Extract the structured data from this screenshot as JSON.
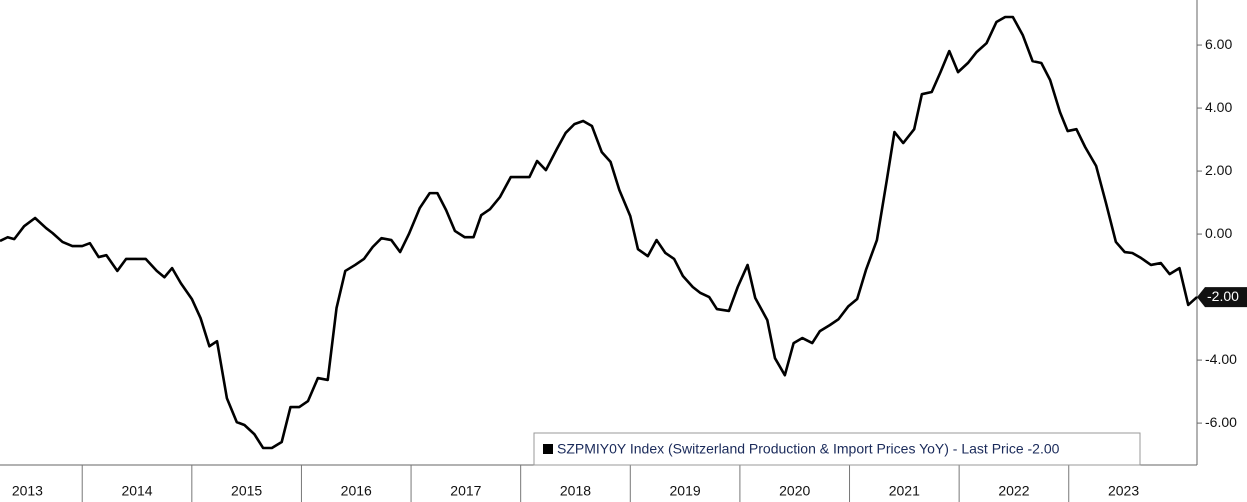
{
  "chart_data": {
    "type": "line",
    "x": [
      2013.25,
      2013.32,
      2013.38,
      2013.47,
      2013.57,
      2013.67,
      2013.73,
      2013.82,
      2013.91,
      2014.0,
      2014.07,
      2014.15,
      2014.22,
      2014.32,
      2014.4,
      2014.49,
      2014.58,
      2014.68,
      2014.75,
      2014.82,
      2014.9,
      2015.0,
      2015.08,
      2015.16,
      2015.23,
      2015.32,
      2015.41,
      2015.48,
      2015.57,
      2015.65,
      2015.73,
      2015.82,
      2015.9,
      2015.98,
      2016.06,
      2016.15,
      2016.24,
      2016.32,
      2016.4,
      2016.49,
      2016.57,
      2016.65,
      2016.73,
      2016.82,
      2016.9,
      2016.98,
      2017.08,
      2017.17,
      2017.24,
      2017.32,
      2017.4,
      2017.49,
      2017.57,
      2017.64,
      2017.72,
      2017.81,
      2017.91,
      2017.99,
      2018.08,
      2018.15,
      2018.23,
      2018.33,
      2018.41,
      2018.49,
      2018.57,
      2018.65,
      2018.74,
      2018.82,
      2018.9,
      2019.0,
      2019.07,
      2019.16,
      2019.24,
      2019.32,
      2019.4,
      2019.48,
      2019.57,
      2019.64,
      2019.72,
      2019.79,
      2019.9,
      2019.98,
      2020.07,
      2020.14,
      2020.25,
      2020.32,
      2020.41,
      2020.49,
      2020.57,
      2020.66,
      2020.73,
      2020.82,
      2020.9,
      2020.99,
      2021.07,
      2021.15,
      2021.25,
      2021.34,
      2021.41,
      2021.49,
      2021.59,
      2021.66,
      2021.75,
      2021.83,
      2021.91,
      2021.99,
      2022.08,
      2022.16,
      2022.25,
      2022.34,
      2022.42,
      2022.49,
      2022.58,
      2022.67,
      2022.75,
      2022.83,
      2022.92,
      2022.99,
      2023.07,
      2023.15,
      2023.25,
      2023.34,
      2023.43,
      2023.51,
      2023.58,
      2023.66,
      2023.75,
      2023.84,
      2023.92,
      2024.01,
      2024.09,
      2024.17
    ],
    "series": [
      {
        "name": "SZPMIY0Y Index (Switzerland Production & Import Prices YoY) - Last Price -2.00",
        "color": "#000000",
        "values": [
          -0.22,
          -0.1,
          -0.16,
          0.25,
          0.51,
          0.19,
          0.03,
          -0.25,
          -0.38,
          -0.38,
          -0.29,
          -0.73,
          -0.67,
          -1.17,
          -0.79,
          -0.79,
          -0.79,
          -1.17,
          -1.37,
          -1.08,
          -1.56,
          -2.06,
          -2.67,
          -3.56,
          -3.4,
          -5.21,
          -5.97,
          -6.06,
          -6.35,
          -6.79,
          -6.79,
          -6.6,
          -5.49,
          -5.49,
          -5.3,
          -4.57,
          -4.63,
          -2.35,
          -1.17,
          -0.98,
          -0.79,
          -0.41,
          -0.13,
          -0.19,
          -0.57,
          0.0,
          0.83,
          1.3,
          1.3,
          0.76,
          0.1,
          -0.1,
          -0.1,
          0.6,
          0.79,
          1.17,
          1.81,
          1.81,
          1.81,
          2.32,
          2.03,
          2.7,
          3.21,
          3.49,
          3.59,
          3.43,
          2.6,
          2.29,
          1.4,
          0.57,
          -0.48,
          -0.7,
          -0.19,
          -0.6,
          -0.79,
          -1.33,
          -1.68,
          -1.87,
          -2.0,
          -2.38,
          -2.44,
          -1.68,
          -0.98,
          -2.03,
          -2.73,
          -3.94,
          -4.48,
          -3.46,
          -3.3,
          -3.46,
          -3.08,
          -2.89,
          -2.7,
          -2.29,
          -2.06,
          -1.14,
          -0.19,
          1.71,
          3.24,
          2.89,
          3.33,
          4.44,
          4.51,
          5.14,
          5.81,
          5.14,
          5.43,
          5.78,
          6.06,
          6.73,
          6.89,
          6.89,
          6.32,
          5.49,
          5.43,
          4.89,
          3.87,
          3.27,
          3.33,
          2.76,
          2.16,
          0.98,
          -0.25,
          -0.57,
          -0.6,
          -0.76,
          -0.98,
          -0.92,
          -1.27,
          -1.08,
          -2.25,
          -2.0
        ]
      }
    ],
    "last_price": {
      "value": -2,
      "label": "-2.00"
    },
    "xlim": [
      2013.25,
      2024.17
    ],
    "xticks": [
      2013,
      2014,
      2015,
      2016,
      2017,
      2018,
      2019,
      2020,
      2021,
      2022,
      2023
    ],
    "ylim": [
      -7.33,
      7.43
    ],
    "yticks": [
      {
        "value": 6,
        "label": "6.00"
      },
      {
        "value": 4,
        "label": "4.00"
      },
      {
        "value": 2,
        "label": "2.00"
      },
      {
        "value": 0,
        "label": "0.00"
      },
      {
        "value": -2,
        "label": "-2.00"
      },
      {
        "value": -4,
        "label": "-4.00"
      },
      {
        "value": -6,
        "label": "-6.00"
      }
    ],
    "legend": "bottom-right"
  }
}
